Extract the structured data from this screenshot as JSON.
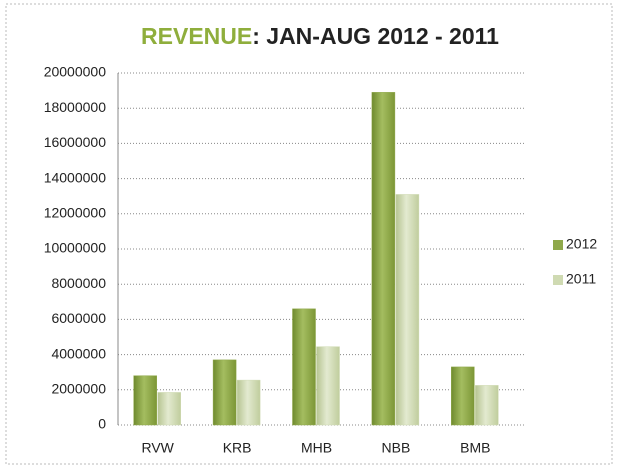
{
  "chart_data": {
    "type": "bar",
    "title": [
      "REVENUE",
      ": JAN-AUG 2012 - 2011"
    ],
    "categories": [
      "RVW",
      "KRB",
      "MHB",
      "NBB",
      "BMB"
    ],
    "series": [
      {
        "name": "2012",
        "color": "#8fa84a",
        "values": [
          2800000,
          3700000,
          6600000,
          18900000,
          3300000
        ]
      },
      {
        "name": "2011",
        "color": "#cfdab2",
        "values": [
          1850000,
          2550000,
          4450000,
          13100000,
          2250000
        ]
      }
    ],
    "ylim": [
      0,
      20000000
    ],
    "yticks": [
      0,
      2000000,
      4000000,
      6000000,
      8000000,
      10000000,
      12000000,
      14000000,
      16000000,
      18000000,
      20000000
    ],
    "grid": true,
    "legend": "right"
  }
}
